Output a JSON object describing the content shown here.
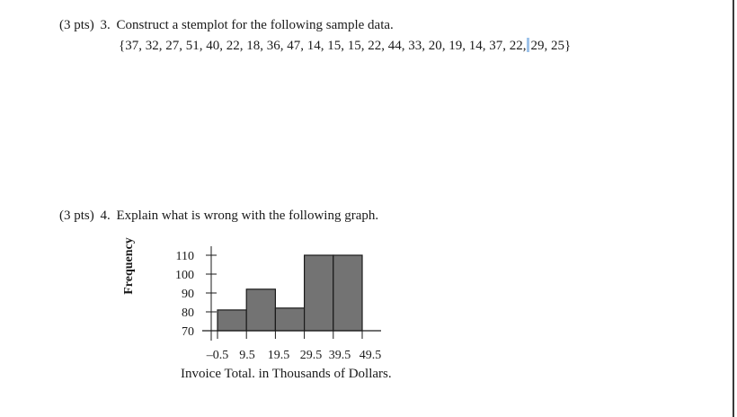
{
  "question3": {
    "points": "(3 pts)",
    "number": "3.",
    "prompt": "Construct a stemplot for the following sample data.",
    "data_before_caret": "{37, 32, 27, 51, 40, 22, 18, 36, 47, 14, 15, 15, 22, 44, 33, 20, 19, 14, 37, 22,",
    "data_after_caret": "29, 25}"
  },
  "question4": {
    "points": "(3 pts)",
    "number": "4.",
    "prompt": "Explain what is wrong with the following graph."
  },
  "chart_data": {
    "type": "bar",
    "ylabel": "Frequency",
    "xlabel": "Invoice Total. in Thousands of Dollars.",
    "categories": [
      "-0.5 to 9.5",
      "9.5 to 19.5",
      "19.5 to 29.5",
      "29.5 to 39.5",
      "39.5 to 49.5"
    ],
    "bin_edges": [
      -0.5,
      9.5,
      19.5,
      29.5,
      39.5,
      49.5
    ],
    "x_tick_labels": [
      "–0.5",
      "9.5",
      "19.5",
      "29.5",
      "39.5",
      "49.5"
    ],
    "values": [
      81,
      92,
      82,
      110,
      110
    ],
    "y_ticks": [
      70,
      80,
      90,
      100,
      110
    ],
    "ylim": [
      70,
      110
    ],
    "bar_color": "#737373"
  }
}
